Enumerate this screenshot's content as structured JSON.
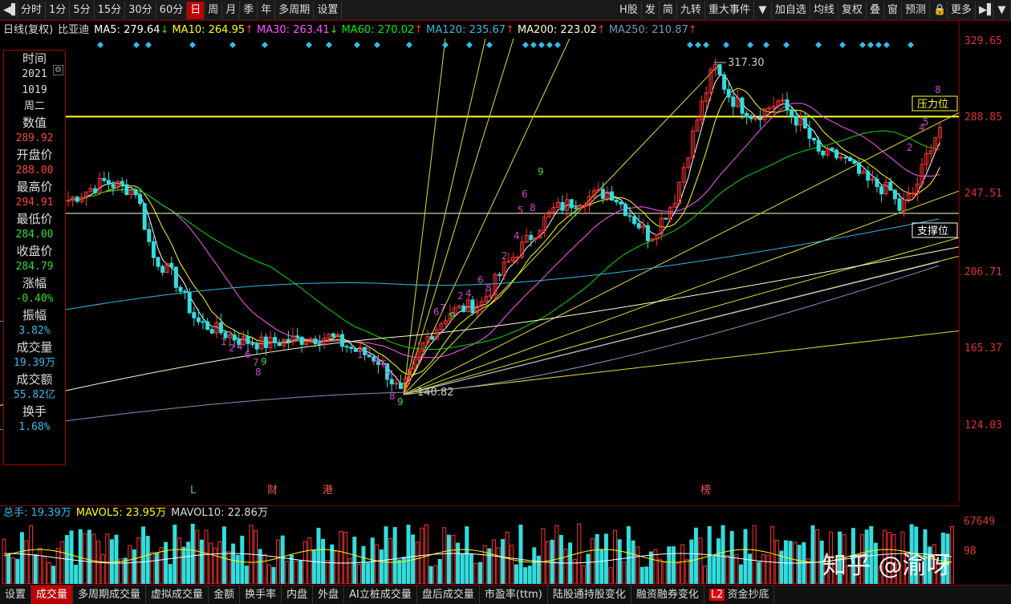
{
  "toolbar": {
    "left_items": [
      "分时",
      "1分",
      "5分",
      "15分",
      "30分",
      "60分",
      "日",
      "周",
      "月",
      "季",
      "年",
      "多周期",
      "设置"
    ],
    "active": "日",
    "right_items": [
      "H股",
      "发",
      "简",
      "九转",
      "重大事件",
      "加自选",
      "均线",
      "复权",
      "叠",
      "窗",
      "预测",
      "更多"
    ]
  },
  "info": {
    "period": "日线(复权)",
    "stock": "比亚迪",
    "ma": [
      {
        "label": "MA5: 279.64",
        "color": "#ffffff"
      },
      {
        "label": "MA10: 264.95",
        "color": "#ffff00"
      },
      {
        "label": "MA30: 263.41",
        "color": "#ff55ff"
      },
      {
        "label": "MA60: 270.02",
        "color": "#00ee00"
      },
      {
        "label": "MA120: 235.67",
        "color": "#33bbdd"
      },
      {
        "label": "MA200: 223.02",
        "color": "#ffffcc"
      },
      {
        "label": "MA250: 210.87",
        "color": "#7799bb"
      }
    ]
  },
  "panel": {
    "items": [
      {
        "label": "时间",
        "values": [
          "2021",
          "1019",
          "周二"
        ],
        "color": "#dddddd"
      },
      {
        "label": "数值",
        "values": [
          "289.92"
        ],
        "color": "#ff4444"
      },
      {
        "label": "开盘价",
        "values": [
          "288.00"
        ],
        "color": "#ff4444"
      },
      {
        "label": "最高价",
        "values": [
          "294.91"
        ],
        "color": "#ff4444"
      },
      {
        "label": "最低价",
        "values": [
          "284.00"
        ],
        "color": "#33dd33"
      },
      {
        "label": "收盘价",
        "values": [
          "284.79"
        ],
        "color": "#33dd33"
      },
      {
        "label": "涨幅",
        "values": [
          "-0.40%"
        ],
        "color": "#33dd33"
      },
      {
        "label": "振幅",
        "values": [
          "3.82%"
        ],
        "color": "#33bbee"
      },
      {
        "label": "成交量",
        "values": [
          "19.39万"
        ],
        "color": "#33bbee"
      },
      {
        "label": "成交额",
        "values": [
          "55.82亿"
        ],
        "color": "#33bbee"
      },
      {
        "label": "换手",
        "values": [
          "1.68%"
        ],
        "color": "#33bbee"
      }
    ]
  },
  "price_axis": [
    "329.65",
    "288.85",
    "247.51",
    "206.71",
    "165.37",
    "124.03"
  ],
  "annotations": {
    "high": "317.30",
    "low": "140.82",
    "pressure": "压力位",
    "support": "支撑位",
    "events": [
      "L",
      "财",
      "港",
      "榜"
    ]
  },
  "volume": {
    "total": "总手: 19.39万",
    "mavol5": "MAVOL5: 23.95万",
    "mavol10": "MAVOL10: 22.86万",
    "axis_top": "67649",
    "axis_mid": "98"
  },
  "tabs": [
    "设置",
    "成交量",
    "多周期成交量",
    "虚拟成交量",
    "金额",
    "换手率",
    "内盘",
    "外盘",
    "AI立桩成交量",
    "盘后成交量",
    "市盈率(ttm)",
    "陆股通持股变化",
    "融资融券变化",
    "资金抄底"
  ],
  "active_tab": "成交量",
  "l2_label": "L2",
  "watermark": "知乎 @渝呀",
  "colors": {
    "up": "#ff3333",
    "down": "#33dddd",
    "accent": "#bb0000"
  }
}
